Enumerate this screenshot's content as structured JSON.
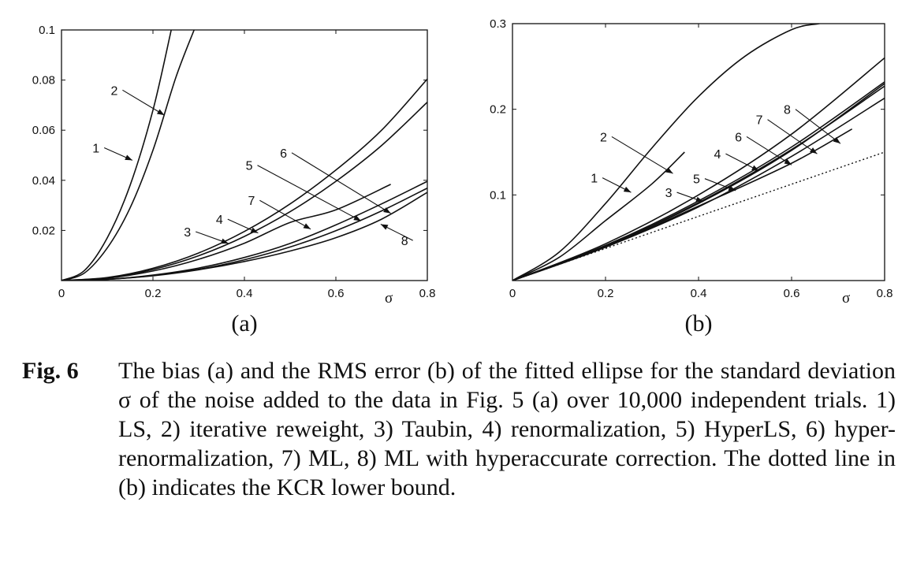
{
  "caption": {
    "figure_label": "Fig. 6",
    "text": "The bias (a) and the RMS error (b) of the fitted ellipse for the standard deviation σ of the noise added to the data in Fig. 5 (a) over 10,000 independent trials. 1) LS, 2) iterative reweight, 3) Taubin, 4) renormalization, 5) HyperLS, 6) hyper-renormalization, 7) ML, 8) ML with hyperaccurate correction. The dotted line in (b) indicates the KCR lower bound."
  },
  "chart_data": [
    {
      "type": "line",
      "panel_label": "(a)",
      "xlabel": "σ",
      "xlim": [
        0,
        0.8
      ],
      "ylim": [
        0,
        0.1
      ],
      "x_ticks": [
        "0",
        "0.2",
        "0.4",
        "0.6",
        "0.8"
      ],
      "y_ticks": [
        "0.02",
        "0.04",
        "0.06",
        "0.08",
        "0.1"
      ],
      "series": [
        {
          "name": "1",
          "x": [
            0,
            0.05,
            0.1,
            0.15,
            0.2,
            0.24
          ],
          "y": [
            0,
            0.004,
            0.017,
            0.038,
            0.068,
            0.1
          ]
        },
        {
          "name": "2",
          "x": [
            0,
            0.05,
            0.1,
            0.15,
            0.2,
            0.25,
            0.29
          ],
          "y": [
            0,
            0.003,
            0.013,
            0.029,
            0.052,
            0.081,
            0.1
          ]
        },
        {
          "name": "3",
          "x": [
            0,
            0.1,
            0.2,
            0.3,
            0.4,
            0.5,
            0.6,
            0.7,
            0.8
          ],
          "y": [
            0,
            0.0012,
            0.0049,
            0.011,
            0.0196,
            0.0306,
            0.0441,
            0.06,
            0.0804
          ]
        },
        {
          "name": "4",
          "x": [
            0,
            0.1,
            0.2,
            0.3,
            0.4,
            0.5,
            0.6,
            0.7,
            0.8
          ],
          "y": [
            0,
            0.0011,
            0.0044,
            0.0099,
            0.0176,
            0.0275,
            0.0396,
            0.0539,
            0.0712
          ]
        },
        {
          "name": "5",
          "x": [
            0,
            0.1,
            0.2,
            0.3,
            0.4,
            0.5,
            0.6,
            0.7,
            0.8
          ],
          "y": [
            0,
            0.0005,
            0.0022,
            0.005,
            0.0092,
            0.0148,
            0.0222,
            0.0306,
            0.0396
          ]
        },
        {
          "name": "6",
          "x": [
            0,
            0.1,
            0.2,
            0.3,
            0.4,
            0.5,
            0.6,
            0.7,
            0.8
          ],
          "y": [
            0,
            0.0005,
            0.002,
            0.0045,
            0.0083,
            0.0134,
            0.0199,
            0.0278,
            0.0369
          ]
        },
        {
          "name": "7",
          "x": [
            0,
            0.1,
            0.2,
            0.3,
            0.4,
            0.5,
            0.6,
            0.72
          ],
          "y": [
            0,
            0.0009,
            0.0038,
            0.0085,
            0.0149,
            0.0232,
            0.0282,
            0.0384
          ]
        },
        {
          "name": "8",
          "x": [
            0,
            0.1,
            0.2,
            0.3,
            0.4,
            0.5,
            0.6,
            0.7,
            0.8
          ],
          "y": [
            0,
            0.0005,
            0.0019,
            0.0043,
            0.0076,
            0.0118,
            0.0171,
            0.0245,
            0.0352
          ]
        }
      ],
      "labels": [
        {
          "text": "1",
          "x": 0.09,
          "y": 0.053,
          "to_x": 0.155,
          "to_y": 0.048
        },
        {
          "text": "2",
          "x": 0.13,
          "y": 0.076,
          "to_x": 0.225,
          "to_y": 0.066
        },
        {
          "text": "3",
          "x": 0.29,
          "y": 0.0195,
          "to_x": 0.365,
          "to_y": 0.0148
        },
        {
          "text": "4",
          "x": 0.36,
          "y": 0.0245,
          "to_x": 0.43,
          "to_y": 0.019
        },
        {
          "text": "5",
          "x": 0.425,
          "y": 0.046,
          "to_x": 0.655,
          "to_y": 0.0238
        },
        {
          "text": "6",
          "x": 0.5,
          "y": 0.051,
          "to_x": 0.72,
          "to_y": 0.0268
        },
        {
          "text": "7",
          "x": 0.43,
          "y": 0.032,
          "to_x": 0.545,
          "to_y": 0.0205
        },
        {
          "text": "8",
          "x": 0.765,
          "y": 0.016,
          "to_x": 0.698,
          "to_y": 0.0225
        }
      ]
    },
    {
      "type": "line",
      "panel_label": "(b)",
      "xlabel": "σ",
      "xlim": [
        0,
        0.8
      ],
      "ylim": [
        0,
        0.3
      ],
      "x_ticks": [
        "0",
        "0.2",
        "0.4",
        "0.6",
        "0.8"
      ],
      "y_ticks": [
        "0.1",
        "0.2",
        "0.3"
      ],
      "series": [
        {
          "name": "1",
          "x": [
            0,
            0.1,
            0.2,
            0.3,
            0.4,
            0.5,
            0.6,
            0.66
          ],
          "y": [
            0,
            0.033,
            0.09,
            0.155,
            0.215,
            0.262,
            0.293,
            0.3
          ]
        },
        {
          "name": "2",
          "x": [
            0,
            0.1,
            0.2,
            0.3,
            0.37
          ],
          "y": [
            0,
            0.027,
            0.07,
            0.113,
            0.15
          ]
        },
        {
          "name": "3",
          "x": [
            0,
            0.2,
            0.4,
            0.6,
            0.8
          ],
          "y": [
            0,
            0.043,
            0.1,
            0.171,
            0.26
          ]
        },
        {
          "name": "4",
          "x": [
            0,
            0.2,
            0.4,
            0.6,
            0.8
          ],
          "y": [
            0,
            0.041,
            0.093,
            0.156,
            0.232
          ]
        },
        {
          "name": "5",
          "x": [
            0,
            0.2,
            0.4,
            0.6,
            0.8
          ],
          "y": [
            0,
            0.04,
            0.091,
            0.153,
            0.227
          ]
        },
        {
          "name": "6",
          "x": [
            0,
            0.2,
            0.4,
            0.6,
            0.8
          ],
          "y": [
            0,
            0.04,
            0.09,
            0.152,
            0.23
          ]
        },
        {
          "name": "7",
          "x": [
            0,
            0.2,
            0.4,
            0.6,
            0.8
          ],
          "y": [
            0,
            0.039,
            0.086,
            0.145,
            0.213
          ]
        },
        {
          "name": "8",
          "x": [
            0,
            0.2,
            0.4,
            0.6,
            0.73
          ],
          "y": [
            0,
            0.039,
            0.087,
            0.137,
            0.177
          ]
        },
        {
          "name": "KCR",
          "style": "dotted",
          "x": [
            0,
            0.8
          ],
          "y": [
            0,
            0.15
          ]
        }
      ],
      "labels": [
        {
          "text": "1",
          "x": 0.19,
          "y": 0.12,
          "to_x": 0.255,
          "to_y": 0.103
        },
        {
          "text": "2",
          "x": 0.21,
          "y": 0.168,
          "to_x": 0.345,
          "to_y": 0.125
        },
        {
          "text": "3",
          "x": 0.35,
          "y": 0.103,
          "to_x": 0.41,
          "to_y": 0.092
        },
        {
          "text": "4",
          "x": 0.455,
          "y": 0.148,
          "to_x": 0.53,
          "to_y": 0.128
        },
        {
          "text": "5",
          "x": 0.41,
          "y": 0.119,
          "to_x": 0.48,
          "to_y": 0.105
        },
        {
          "text": "6",
          "x": 0.5,
          "y": 0.168,
          "to_x": 0.6,
          "to_y": 0.135
        },
        {
          "text": "7",
          "x": 0.545,
          "y": 0.188,
          "to_x": 0.655,
          "to_y": 0.148
        },
        {
          "text": "8",
          "x": 0.605,
          "y": 0.2,
          "to_x": 0.705,
          "to_y": 0.16
        }
      ]
    }
  ]
}
